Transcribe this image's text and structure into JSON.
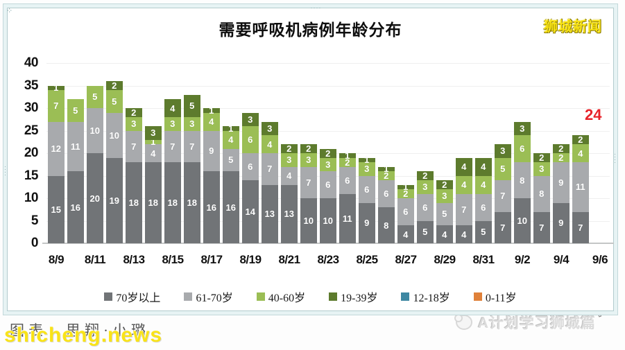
{
  "title": "需要呼吸机病例年龄分布",
  "watermarks": {
    "top_right": "狮城新闻",
    "bottom_left": "shicheng.news",
    "bottom_left_caption": "图表：思翔·小璐",
    "bottom_right_brand": "A计划学习狮城篇"
  },
  "annotation": {
    "text": "24",
    "color": "#e8232a"
  },
  "colors": {
    "frame_band": "#e7f3f4",
    "frame_line": "#b3cbcd",
    "grid": "#efefef",
    "axis_baseline": "#c4c6c6",
    "title_text": "#0d0d0d",
    "watermark_yellow": "#f7e214"
  },
  "chart_data": {
    "type": "bar",
    "stacked": true,
    "title": "需要呼吸机病例年龄分布",
    "xlabel": "",
    "ylabel": "",
    "ylim": [
      0,
      40
    ],
    "ytick_step": 5,
    "grid": true,
    "legend_position": "bottom",
    "categories": [
      "8/9",
      "8/10",
      "8/11",
      "8/12",
      "8/13",
      "8/14",
      "8/15",
      "8/16",
      "8/17",
      "8/18",
      "8/19",
      "8/20",
      "8/21",
      "8/22",
      "8/23",
      "8/24",
      "8/25",
      "8/26",
      "8/27",
      "8/28",
      "8/29",
      "8/30",
      "8/31",
      "9/1",
      "9/2",
      "9/3",
      "9/4",
      "9/5"
    ],
    "x_tick_labels": [
      "8/9",
      "8/11",
      "8/13",
      "8/15",
      "8/17",
      "8/19",
      "8/21",
      "8/23",
      "8/25",
      "8/27",
      "8/29",
      "8/31",
      "9/2",
      "9/4",
      "9/6"
    ],
    "series": [
      {
        "name": "70岁以上",
        "color": "#717477",
        "values": [
          15,
          16,
          20,
          19,
          18,
          18,
          18,
          18,
          16,
          16,
          14,
          13,
          13,
          10,
          10,
          11,
          9,
          8,
          4,
          5,
          4,
          4,
          5,
          7,
          10,
          7,
          9,
          7
        ]
      },
      {
        "name": "61-70岁",
        "color": "#a8aaad",
        "values": [
          12,
          11,
          10,
          10,
          7,
          4,
          7,
          7,
          9,
          5,
          6,
          7,
          4,
          7,
          6,
          6,
          6,
          6,
          6,
          6,
          5,
          7,
          6,
          7,
          8,
          8,
          9,
          11
        ]
      },
      {
        "name": "40-60岁",
        "color": "#9bbe55",
        "values": [
          7,
          5,
          5,
          5,
          3,
          1,
          3,
          3,
          4,
          4,
          6,
          4,
          3,
          3,
          3,
          2,
          3,
          2,
          2,
          3,
          3,
          4,
          4,
          5,
          6,
          3,
          2,
          4
        ]
      },
      {
        "name": "19-39岁",
        "color": "#5d7b2d",
        "values": [
          1,
          0,
          0,
          2,
          2,
          3,
          4,
          5,
          1,
          1,
          3,
          3,
          2,
          2,
          2,
          1,
          1,
          1,
          1,
          2,
          2,
          4,
          4,
          3,
          3,
          2,
          2,
          2
        ]
      },
      {
        "name": "12-18岁",
        "color": "#3e87a2",
        "values": [
          0,
          0,
          0,
          0,
          0,
          0,
          0,
          0,
          0,
          0,
          0,
          0,
          0,
          0,
          0,
          0,
          0,
          0,
          0,
          0,
          0,
          0,
          0,
          0,
          0,
          0,
          0,
          0
        ]
      },
      {
        "name": "0-11岁",
        "color": "#e0813a",
        "values": [
          0,
          0,
          0,
          0,
          0,
          0,
          0,
          0,
          0,
          0,
          0,
          0,
          0,
          0,
          0,
          0,
          0,
          0,
          0,
          0,
          0,
          0,
          0,
          0,
          0,
          0,
          0,
          0
        ]
      }
    ],
    "totals": [
      35,
      32,
      35,
      36,
      30,
      26,
      32,
      33,
      30,
      26,
      29,
      27,
      22,
      22,
      21,
      20,
      19,
      17,
      13,
      16,
      14,
      19,
      19,
      22,
      27,
      20,
      22,
      24
    ]
  }
}
